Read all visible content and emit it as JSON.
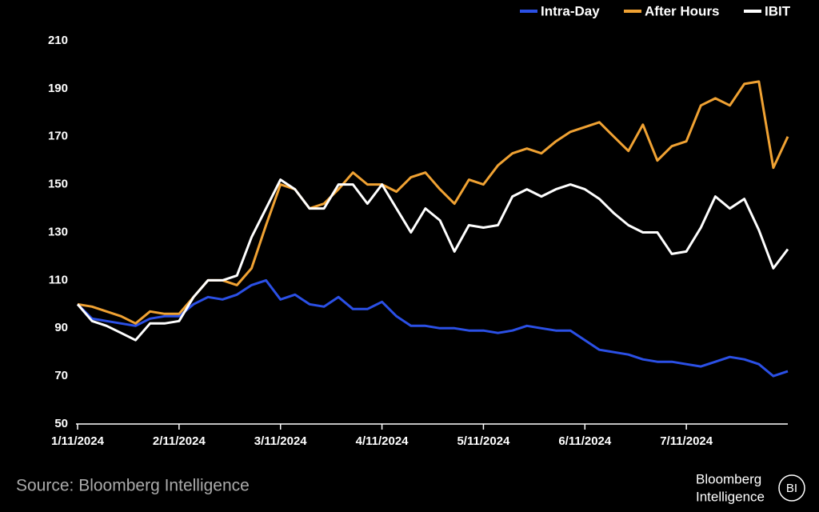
{
  "chart_data": {
    "type": "line",
    "categories": [
      "1/11/2024",
      null,
      null,
      null,
      null,
      null,
      null,
      "2/11/2024",
      null,
      null,
      null,
      null,
      null,
      null,
      "3/11/2024",
      null,
      null,
      null,
      null,
      null,
      null,
      "4/11/2024",
      null,
      null,
      null,
      null,
      null,
      null,
      "5/11/2024",
      null,
      null,
      null,
      null,
      null,
      null,
      "6/11/2024",
      null,
      null,
      null,
      null,
      null,
      null,
      "7/11/2024",
      null,
      null,
      null,
      null,
      null,
      null,
      null
    ],
    "series": [
      {
        "name": "Intra-Day",
        "color": "#2b50e6",
        "values": [
          100,
          94,
          93,
          92,
          91,
          94,
          95,
          95,
          100,
          103,
          102,
          104,
          108,
          110,
          102,
          104,
          100,
          99,
          103,
          98,
          98,
          101,
          95,
          91,
          91,
          90,
          90,
          89,
          89,
          88,
          89,
          91,
          90,
          89,
          89,
          85,
          81,
          80,
          79,
          77,
          76,
          76,
          75,
          74,
          76,
          78,
          77,
          75,
          70,
          72
        ]
      },
      {
        "name": "After Hours",
        "color": "#f0a233",
        "values": [
          100,
          99,
          97,
          95,
          92,
          97,
          96,
          96,
          103,
          110,
          110,
          108,
          115,
          133,
          150,
          148,
          140,
          142,
          148,
          155,
          150,
          150,
          147,
          153,
          155,
          148,
          142,
          152,
          150,
          158,
          163,
          165,
          163,
          168,
          172,
          174,
          176,
          170,
          164,
          175,
          160,
          166,
          168,
          183,
          186,
          183,
          192,
          193,
          157,
          170
        ]
      },
      {
        "name": "IBIT",
        "color": "#ffffff",
        "values": [
          100,
          93,
          91,
          88,
          85,
          92,
          92,
          93,
          103,
          110,
          110,
          112,
          128,
          140,
          152,
          148,
          140,
          140,
          150,
          150,
          142,
          150,
          140,
          130,
          140,
          135,
          122,
          133,
          132,
          133,
          145,
          148,
          145,
          148,
          150,
          148,
          144,
          138,
          133,
          130,
          130,
          121,
          122,
          132,
          145,
          140,
          144,
          131,
          115,
          123
        ]
      }
    ],
    "ylim": [
      50,
      210
    ],
    "yticks": [
      50,
      70,
      90,
      110,
      130,
      150,
      170,
      190,
      210
    ],
    "grid": false,
    "legend": "top-right",
    "source": "Source: Bloomberg Intelligence",
    "logo": {
      "line1": "Bloomberg",
      "line2": "Intelligence",
      "badge": "BI"
    }
  }
}
